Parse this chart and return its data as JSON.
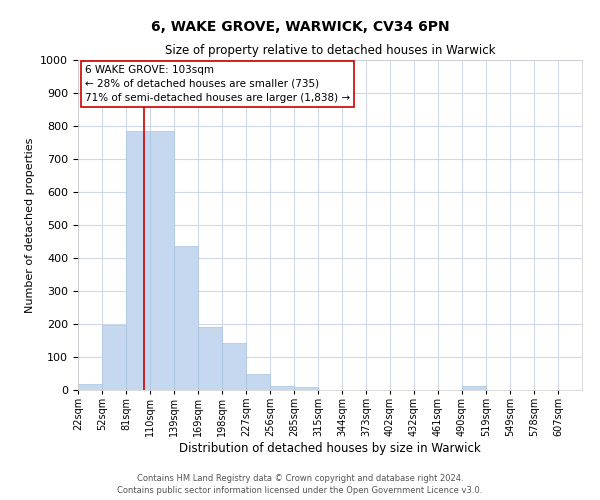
{
  "title": "6, WAKE GROVE, WARWICK, CV34 6PN",
  "subtitle": "Size of property relative to detached houses in Warwick",
  "xlabel": "Distribution of detached houses by size in Warwick",
  "ylabel": "Number of detached properties",
  "bin_labels": [
    "22sqm",
    "52sqm",
    "81sqm",
    "110sqm",
    "139sqm",
    "169sqm",
    "198sqm",
    "227sqm",
    "256sqm",
    "285sqm",
    "315sqm",
    "344sqm",
    "373sqm",
    "402sqm",
    "432sqm",
    "461sqm",
    "490sqm",
    "519sqm",
    "549sqm",
    "578sqm",
    "607sqm"
  ],
  "bar_heights": [
    18,
    196,
    785,
    785,
    437,
    192,
    142,
    50,
    13,
    10,
    0,
    0,
    0,
    0,
    0,
    0,
    12,
    0,
    0,
    0,
    0
  ],
  "bar_color": "#c5d8f0",
  "bar_edgecolor": "#a8c4e0",
  "ylim": [
    0,
    1000
  ],
  "yticks": [
    0,
    100,
    200,
    300,
    400,
    500,
    600,
    700,
    800,
    900,
    1000
  ],
  "vline_x": 2.758,
  "vline_color": "#cc0000",
  "annotation_line1": "6 WAKE GROVE: 103sqm",
  "annotation_line2": "← 28% of detached houses are smaller (735)",
  "annotation_line3": "71% of semi-detached houses are larger (1,838) →",
  "footer_line1": "Contains HM Land Registry data © Crown copyright and database right 2024.",
  "footer_line2": "Contains public sector information licensed under the Open Government Licence v3.0.",
  "background_color": "#ffffff",
  "grid_color": "#d0d8e8"
}
